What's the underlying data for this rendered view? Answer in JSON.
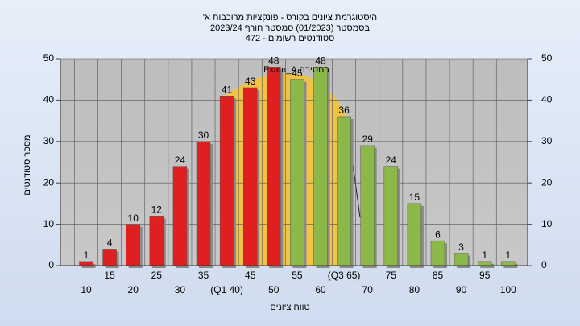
{
  "chart_data": {
    "type": "bar",
    "title": "היסטוגרמת ציונים בקורס - פונקציות מרוכבות א'",
    "subtitle": "בסמסטר  (01/2023)  סמסטר חורף 2023/24",
    "subtitle2": "סטודנטים רשומים - 472",
    "annotation": "בחטיבה Exam_A",
    "x_label": "טווח ציונים",
    "y_label": "מספר סטודנטים",
    "categories": [
      "10",
      "15",
      "20",
      "25",
      "30",
      "35",
      "(Q1 40)",
      "45",
      "50",
      "55",
      "60",
      "(Q3 65)",
      "70",
      "75",
      "80",
      "85",
      "90",
      "95",
      "100"
    ],
    "values": [
      1,
      4,
      10,
      12,
      24,
      30,
      41,
      43,
      48,
      45,
      48,
      36,
      29,
      24,
      15,
      6,
      3,
      1,
      1
    ],
    "colors": [
      "#e02020",
      "#e02020",
      "#e02020",
      "#e02020",
      "#e02020",
      "#e02020",
      "#e02020",
      "#e02020",
      "#e02020",
      "#8cb84a",
      "#8cb84a",
      "#8cb84a",
      "#8cb84a",
      "#8cb84a",
      "#8cb84a",
      "#8cb84a",
      "#8cb84a",
      "#8cb84a",
      "#8cb84a"
    ],
    "ylim": [
      0,
      50
    ],
    "yticks": [
      0,
      10,
      20,
      30,
      40,
      50
    ],
    "y2lim": [
      0,
      50
    ],
    "y2ticks": [
      0,
      10,
      20,
      30,
      40,
      50
    ],
    "grid": true
  }
}
